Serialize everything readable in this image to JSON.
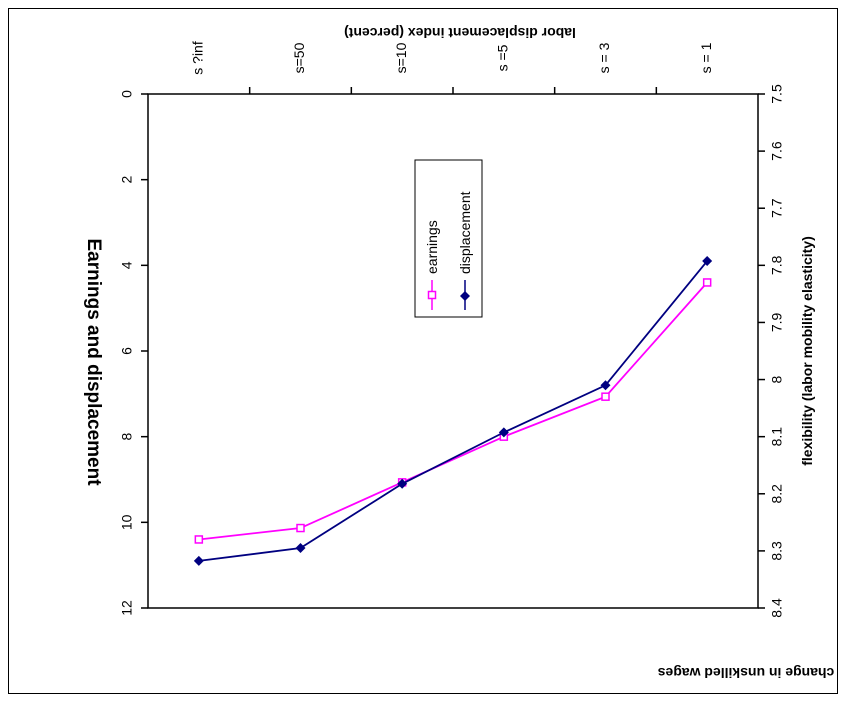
{
  "chart_data": {
    "type": "line",
    "title": "Earnings and displacement",
    "xlabel": "flexibility (labor mobility elasticity)",
    "ylabel_left": "change in unskilled wages",
    "ylabel_right": "labor displacement index (percent)",
    "categories": [
      "s = 1",
      "s = 3",
      "s =5",
      "s=10",
      "s=50",
      "s ?inf"
    ],
    "y_left_ticks": [
      "7.5",
      "7.6",
      "7.7",
      "7.8",
      "7.9",
      "8",
      "8.1",
      "8.2",
      "8.3",
      "8.4"
    ],
    "y_right_ticks": [
      "0",
      "2",
      "4",
      "6",
      "8",
      "10",
      "12"
    ],
    "ylim_left": [
      7.5,
      8.4
    ],
    "ylim_right": [
      0,
      12
    ],
    "orientation": "rotated 180 degrees",
    "series": [
      {
        "name": "earnings",
        "axis": "left",
        "color": "#FF00FF",
        "marker": "square",
        "values": [
          7.83,
          8.03,
          8.1,
          8.18,
          8.26,
          8.28
        ]
      },
      {
        "name": "displacement",
        "axis": "right",
        "color": "#000080",
        "marker": "diamond",
        "values": [
          3.9,
          6.8,
          7.9,
          9.1,
          10.6,
          10.9
        ]
      }
    ],
    "legend": {
      "placement": "center",
      "entries": [
        "earnings",
        "displacement"
      ]
    }
  }
}
